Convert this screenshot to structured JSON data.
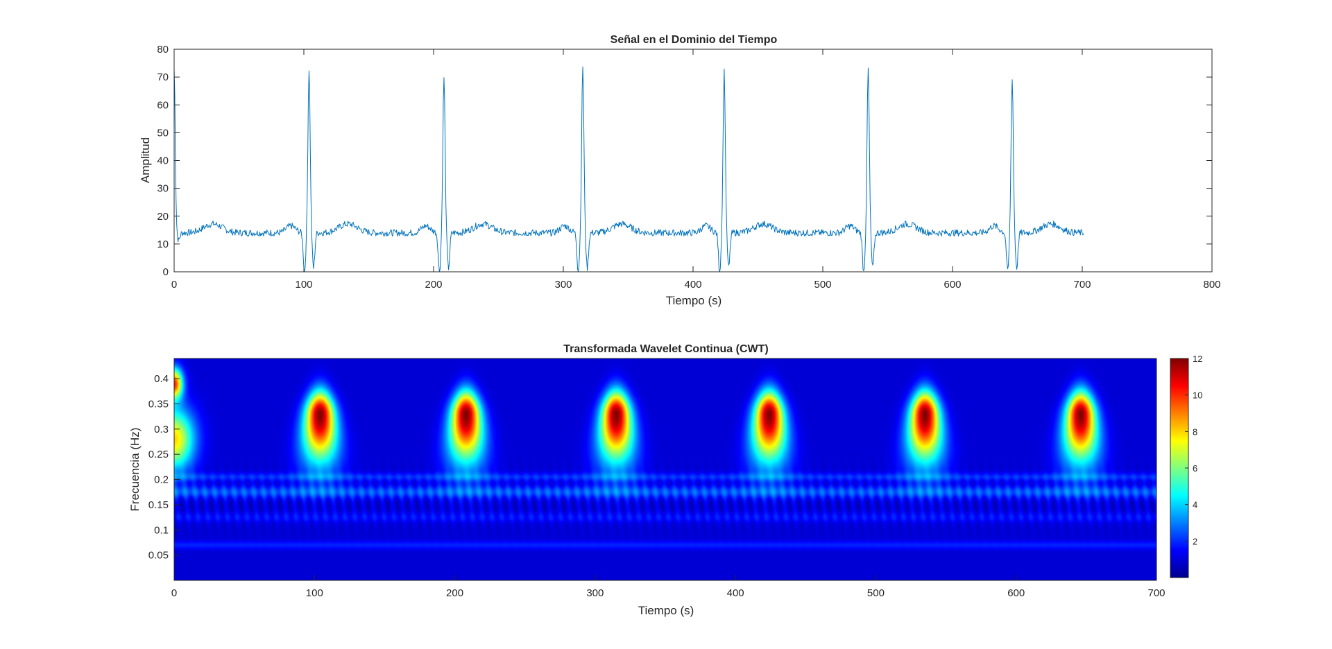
{
  "chart_data": [
    {
      "type": "line",
      "title": "Señal en el Dominio del Tiempo",
      "xlabel": "Tiempo (s)",
      "ylabel": "Amplitud",
      "xlim": [
        0,
        800
      ],
      "ylim": [
        0,
        80
      ],
      "xticks": [
        "0",
        "100",
        "200",
        "300",
        "400",
        "500",
        "600",
        "700",
        "800"
      ],
      "yticks": [
        "0",
        "10",
        "20",
        "30",
        "40",
        "50",
        "60",
        "70",
        "80"
      ],
      "grid": false,
      "color": "#0072BD",
      "series": [
        {
          "baseline": 14,
          "x_end": 701,
          "peaks": [
            {
              "x": 0,
              "y": 73,
              "min": 11
            },
            {
              "x": 104,
              "y": 73,
              "min": 0
            },
            {
              "x": 208,
              "y": 70,
              "min": 0
            },
            {
              "x": 315,
              "y": 74,
              "min": 0
            },
            {
              "x": 424,
              "y": 72,
              "min": 0
            },
            {
              "x": 535,
              "y": 73,
              "min": 0
            },
            {
              "x": 646,
              "y": 70,
              "min": 0
            }
          ]
        }
      ]
    },
    {
      "type": "heatmap",
      "title": "Transformada Wavelet Continua (CWT)",
      "xlabel": "Tiempo (s)",
      "ylabel": "Frecuencia (Hz)",
      "xlim": [
        0,
        700
      ],
      "ylim": [
        0,
        0.44
      ],
      "xticks": [
        "0",
        "100",
        "200",
        "300",
        "400",
        "500",
        "600",
        "700"
      ],
      "yticks": [
        "0.05",
        "0.1",
        "0.15",
        "0.2",
        "0.25",
        "0.3",
        "0.35",
        "0.4"
      ],
      "colormap": "jet",
      "colorbar": {
        "ticks": [
          "2",
          "4",
          "6",
          "8",
          "10",
          "12"
        ],
        "range": [
          0,
          12
        ]
      },
      "peak_times": [
        104,
        208,
        315,
        424,
        535,
        646
      ],
      "peak_frequency": 0.33,
      "peak_magnitude": 12
    }
  ]
}
